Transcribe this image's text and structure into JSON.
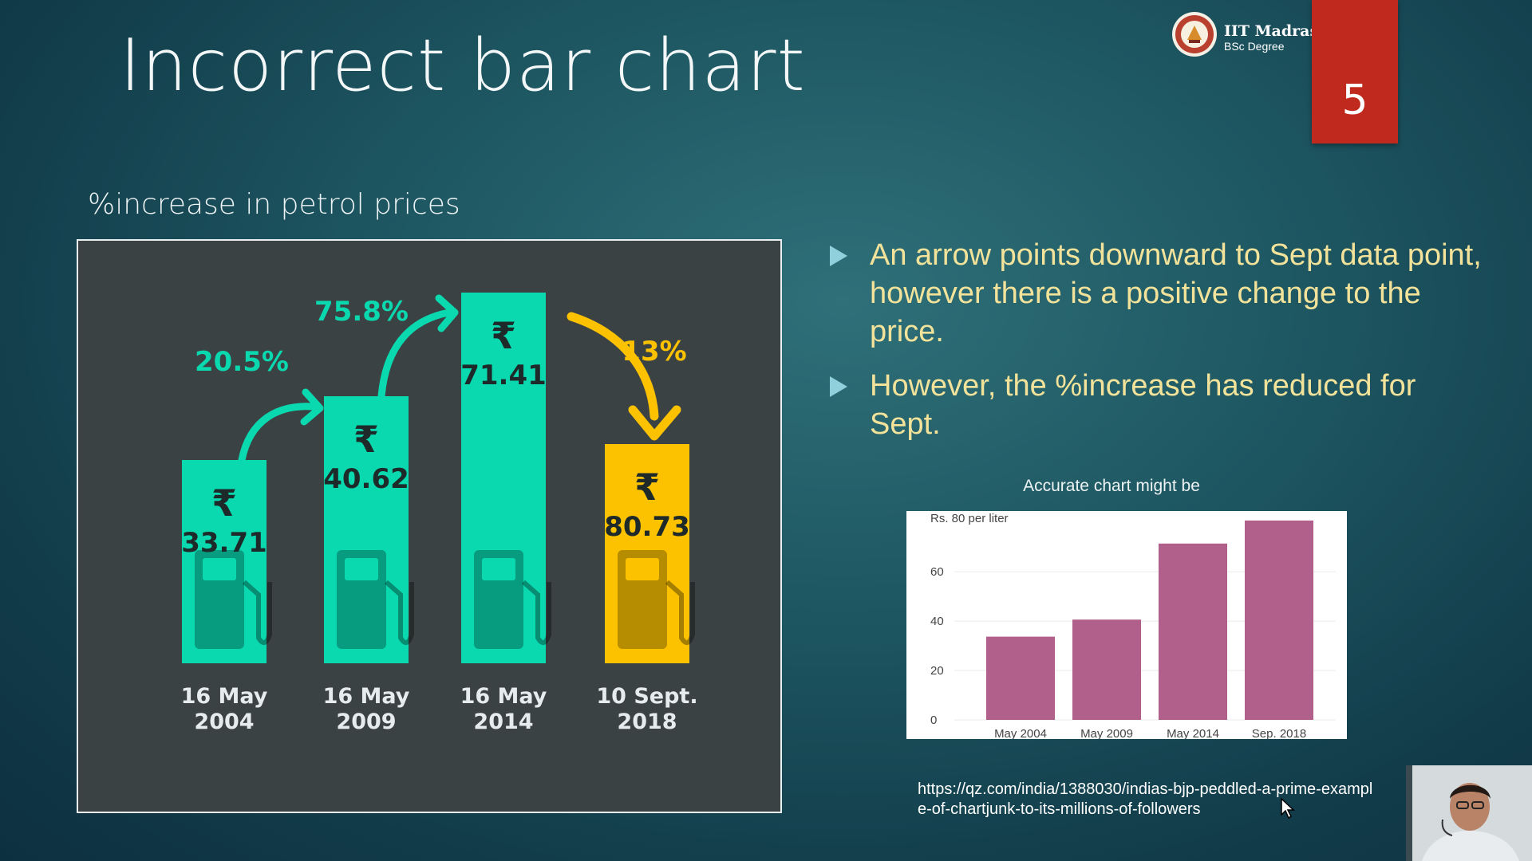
{
  "slide": {
    "title": "Incorrect bar chart",
    "number": "5",
    "logo": {
      "name": "IIT Madras",
      "subtitle": "BSc Degree"
    },
    "subtitle": "%increase in petrol prices"
  },
  "infographic": {
    "currency": "₹",
    "bars": [
      {
        "value": "33.71",
        "date_line1": "16 May",
        "date_line2": "2004",
        "color": "#0ad9b0"
      },
      {
        "value": "40.62",
        "date_line1": "16 May",
        "date_line2": "2009",
        "color": "#0ad9b0"
      },
      {
        "value": "71.41",
        "date_line1": "16 May",
        "date_line2": "2014",
        "color": "#0ad9b0"
      },
      {
        "value": "80.73",
        "date_line1": "10 Sept.",
        "date_line2": "2018",
        "color": "#fcc200"
      }
    ],
    "changes": [
      {
        "label": "20.5%",
        "color": "#0ad9b0"
      },
      {
        "label": "75.8%",
        "color": "#0ad9b0"
      },
      {
        "label": "13%",
        "color": "#fcc200"
      }
    ]
  },
  "bullets": [
    "An arrow points downward to Sept data point, however there is a positive change to the price.",
    "However, the %increase has reduced for Sept."
  ],
  "accurate_caption": "Accurate chart might be",
  "chart_data": {
    "type": "bar",
    "categories": [
      "May 2004",
      "May 2009",
      "May 2014",
      "Sep. 2018"
    ],
    "values": [
      33.71,
      40.62,
      71.41,
      80.73
    ],
    "ylabel": "Rs. 80 per liter",
    "yticks": [
      0,
      20,
      40,
      60
    ],
    "ylim": [
      0,
      82
    ],
    "color": "#b0608a",
    "grid": true
  },
  "source_url": "https://qz.com/india/1388030/indias-bjp-peddled-a-prime-example-of-chartjunk-to-its-millions-of-followers"
}
